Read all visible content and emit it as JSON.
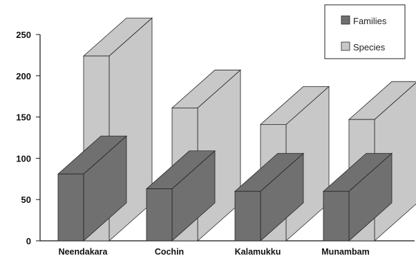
{
  "chart_data": {
    "type": "bar",
    "style": "3d-clustered",
    "categories": [
      "Neendakara",
      "Cochin",
      "Kalamukku",
      "Munambam"
    ],
    "series": [
      {
        "name": "Families",
        "values": [
          81,
          63,
          60,
          60
        ],
        "color": "#707070"
      },
      {
        "name": "Species",
        "values": [
          224,
          161,
          141,
          147
        ],
        "color": "#c8c8c8"
      }
    ],
    "ylim": [
      0,
      250
    ],
    "yticks": [
      0,
      50,
      100,
      150,
      200,
      250
    ],
    "legend_position": "top-right",
    "grid": false
  }
}
